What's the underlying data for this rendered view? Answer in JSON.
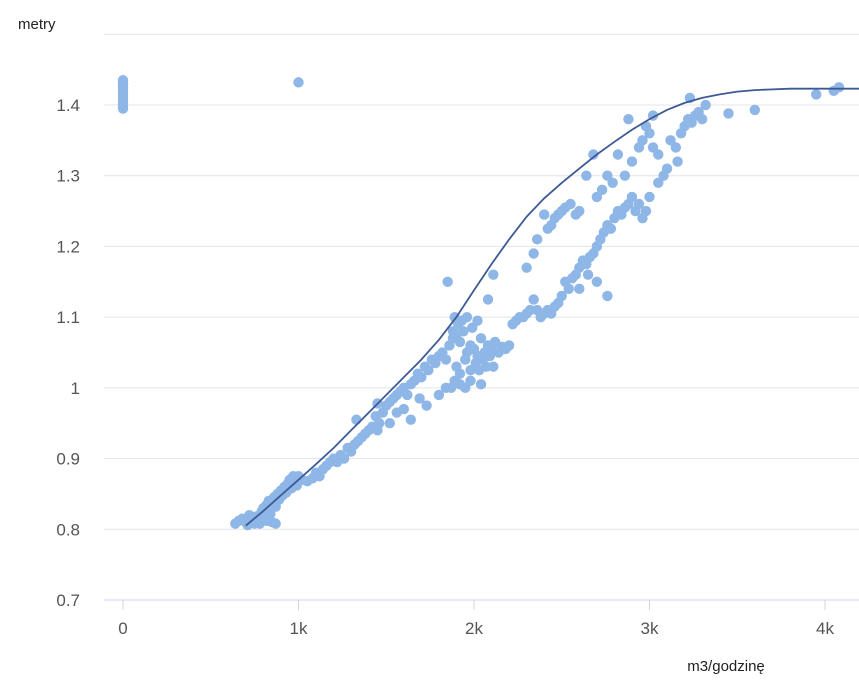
{
  "chart_data": {
    "type": "scatter",
    "ylabel": "metry",
    "xlabel": "m3/godzinę",
    "xlim": [
      -100,
      4200
    ],
    "ylim": [
      0.7,
      1.5
    ],
    "x_ticks": [
      {
        "v": 0,
        "label": "0"
      },
      {
        "v": 1000,
        "label": "1k"
      },
      {
        "v": 2000,
        "label": "2k"
      },
      {
        "v": 3000,
        "label": "3k"
      },
      {
        "v": 4000,
        "label": "4k"
      }
    ],
    "y_ticks": [
      {
        "v": 0.7,
        "label": "0.7"
      },
      {
        "v": 0.8,
        "label": "0.8"
      },
      {
        "v": 0.9,
        "label": "0.9"
      },
      {
        "v": 1.0,
        "label": "1"
      },
      {
        "v": 1.1,
        "label": "1.1"
      },
      {
        "v": 1.2,
        "label": "1.2"
      },
      {
        "v": 1.3,
        "label": "1.3"
      },
      {
        "v": 1.4,
        "label": "1.4"
      }
    ],
    "grid": true,
    "colors": {
      "points": "#8eb6e6",
      "fit_line": "#3e5a96",
      "grid": "#e2e4e8",
      "axis": "#ccd4e6"
    },
    "series": [
      {
        "marker": "circle",
        "points": [
          [
            0,
            1.395
          ],
          [
            0,
            1.4
          ],
          [
            0,
            1.405
          ],
          [
            0,
            1.41
          ],
          [
            0,
            1.415
          ],
          [
            0,
            1.42
          ],
          [
            0,
            1.425
          ],
          [
            0,
            1.43
          ],
          [
            0,
            1.435
          ],
          [
            1000,
            1.432
          ],
          [
            640,
            0.808
          ],
          [
            660,
            0.812
          ],
          [
            680,
            0.815
          ],
          [
            700,
            0.81
          ],
          [
            710,
            0.806
          ],
          [
            720,
            0.82
          ],
          [
            740,
            0.814
          ],
          [
            750,
            0.808
          ],
          [
            760,
            0.818
          ],
          [
            780,
            0.812
          ],
          [
            790,
            0.825
          ],
          [
            800,
            0.83
          ],
          [
            810,
            0.82
          ],
          [
            820,
            0.835
          ],
          [
            830,
            0.84
          ],
          [
            840,
            0.822
          ],
          [
            850,
            0.838
          ],
          [
            860,
            0.845
          ],
          [
            870,
            0.832
          ],
          [
            880,
            0.85
          ],
          [
            890,
            0.842
          ],
          [
            900,
            0.855
          ],
          [
            910,
            0.848
          ],
          [
            920,
            0.86
          ],
          [
            930,
            0.852
          ],
          [
            940,
            0.865
          ],
          [
            950,
            0.87
          ],
          [
            960,
            0.858
          ],
          [
            970,
            0.875
          ],
          [
            980,
            0.866
          ],
          [
            990,
            0.862
          ],
          [
            1000,
            0.875
          ],
          [
            780,
            0.808
          ],
          [
            820,
            0.812
          ],
          [
            850,
            0.81
          ],
          [
            870,
            0.808
          ],
          [
            1020,
            0.87
          ],
          [
            1050,
            0.868
          ],
          [
            1080,
            0.872
          ],
          [
            1100,
            0.88
          ],
          [
            1120,
            0.875
          ],
          [
            1140,
            0.885
          ],
          [
            1160,
            0.89
          ],
          [
            1180,
            0.895
          ],
          [
            1200,
            0.9
          ],
          [
            1220,
            0.895
          ],
          [
            1240,
            0.905
          ],
          [
            1260,
            0.9
          ],
          [
            1280,
            0.915
          ],
          [
            1300,
            0.91
          ],
          [
            1320,
            0.92
          ],
          [
            1330,
            0.955
          ],
          [
            1340,
            0.925
          ],
          [
            1360,
            0.93
          ],
          [
            1380,
            0.935
          ],
          [
            1400,
            0.94
          ],
          [
            1420,
            0.945
          ],
          [
            1440,
            0.96
          ],
          [
            1450,
            0.978
          ],
          [
            1460,
            0.95
          ],
          [
            1480,
            0.965
          ],
          [
            1500,
            0.975
          ],
          [
            1520,
            0.98
          ],
          [
            1540,
            0.985
          ],
          [
            1560,
            0.99
          ],
          [
            1580,
            0.995
          ],
          [
            1600,
            1.0
          ],
          [
            1620,
            0.99
          ],
          [
            1640,
            1.005
          ],
          [
            1660,
            1.01
          ],
          [
            1680,
            1.02
          ],
          [
            1700,
            1.015
          ],
          [
            1720,
            1.03
          ],
          [
            1740,
            1.025
          ],
          [
            1760,
            1.04
          ],
          [
            1780,
            1.035
          ],
          [
            1800,
            1.045
          ],
          [
            1820,
            1.05
          ],
          [
            1840,
            1.04
          ],
          [
            1860,
            1.06
          ],
          [
            1880,
            1.07
          ],
          [
            1900,
            1.075
          ],
          [
            1920,
            1.065
          ],
          [
            1940,
            1.08
          ],
          [
            1960,
            1.05
          ],
          [
            1980,
            1.06
          ],
          [
            2000,
            1.055
          ],
          [
            2020,
            1.045
          ],
          [
            2040,
            1.07
          ],
          [
            2060,
            1.05
          ],
          [
            2080,
            1.06
          ],
          [
            2100,
            1.055
          ],
          [
            2120,
            1.065
          ],
          [
            2140,
            1.05
          ],
          [
            2160,
            1.058
          ],
          [
            2180,
            1.055
          ],
          [
            1900,
            1.03
          ],
          [
            1920,
            1.02
          ],
          [
            1950,
            1.04
          ],
          [
            1980,
            1.025
          ],
          [
            2010,
            1.035
          ],
          [
            2030,
            1.025
          ],
          [
            2050,
            1.04
          ],
          [
            2070,
            1.03
          ],
          [
            2090,
            1.045
          ],
          [
            2110,
            1.03
          ],
          [
            1880,
            1.08
          ],
          [
            1890,
            1.1
          ],
          [
            1910,
            1.09
          ],
          [
            1930,
            1.095
          ],
          [
            1960,
            1.1
          ],
          [
            1990,
            1.085
          ],
          [
            2020,
            1.095
          ],
          [
            1870,
            1.0
          ],
          [
            1890,
            1.01
          ],
          [
            1920,
            1.005
          ],
          [
            1950,
            1.0
          ],
          [
            1980,
            1.01
          ],
          [
            2040,
            1.005
          ],
          [
            1850,
            1.15
          ],
          [
            2080,
            1.125
          ],
          [
            2110,
            1.16
          ],
          [
            2200,
            1.06
          ],
          [
            1450,
            0.94
          ],
          [
            1520,
            0.95
          ],
          [
            1560,
            0.965
          ],
          [
            1600,
            0.97
          ],
          [
            1640,
            0.955
          ],
          [
            1690,
            0.985
          ],
          [
            1730,
            0.975
          ],
          [
            1800,
            0.99
          ],
          [
            1840,
            1.0
          ],
          [
            2220,
            1.09
          ],
          [
            2240,
            1.095
          ],
          [
            2260,
            1.1
          ],
          [
            2280,
            1.1
          ],
          [
            2300,
            1.105
          ],
          [
            2320,
            1.11
          ],
          [
            2340,
            1.125
          ],
          [
            2360,
            1.11
          ],
          [
            2380,
            1.1
          ],
          [
            2400,
            1.105
          ],
          [
            2420,
            1.11
          ],
          [
            2440,
            1.105
          ],
          [
            2460,
            1.115
          ],
          [
            2480,
            1.12
          ],
          [
            2500,
            1.13
          ],
          [
            2520,
            1.15
          ],
          [
            2540,
            1.14
          ],
          [
            2560,
            1.155
          ],
          [
            2580,
            1.16
          ],
          [
            2600,
            1.17
          ],
          [
            2620,
            1.18
          ],
          [
            2640,
            1.175
          ],
          [
            2660,
            1.185
          ],
          [
            2680,
            1.19
          ],
          [
            2700,
            1.2
          ],
          [
            2720,
            1.21
          ],
          [
            2740,
            1.22
          ],
          [
            2760,
            1.23
          ],
          [
            2780,
            1.225
          ],
          [
            2800,
            1.24
          ],
          [
            2820,
            1.25
          ],
          [
            2840,
            1.245
          ],
          [
            2860,
            1.255
          ],
          [
            2880,
            1.26
          ],
          [
            2900,
            1.27
          ],
          [
            2920,
            1.25
          ],
          [
            2940,
            1.26
          ],
          [
            2960,
            1.24
          ],
          [
            2980,
            1.25
          ],
          [
            3000,
            1.27
          ],
          [
            2300,
            1.17
          ],
          [
            2340,
            1.19
          ],
          [
            2360,
            1.21
          ],
          [
            2400,
            1.245
          ],
          [
            2420,
            1.225
          ],
          [
            2440,
            1.23
          ],
          [
            2460,
            1.24
          ],
          [
            2480,
            1.245
          ],
          [
            2500,
            1.25
          ],
          [
            2520,
            1.255
          ],
          [
            2550,
            1.26
          ],
          [
            2580,
            1.245
          ],
          [
            2600,
            1.25
          ],
          [
            2640,
            1.3
          ],
          [
            2680,
            1.33
          ],
          [
            2700,
            1.27
          ],
          [
            2730,
            1.28
          ],
          [
            2760,
            1.3
          ],
          [
            2790,
            1.29
          ],
          [
            2820,
            1.33
          ],
          [
            2860,
            1.3
          ],
          [
            2900,
            1.32
          ],
          [
            2940,
            1.34
          ],
          [
            2960,
            1.35
          ],
          [
            3000,
            1.36
          ],
          [
            3020,
            1.34
          ],
          [
            3050,
            1.33
          ],
          [
            3080,
            1.3
          ],
          [
            3100,
            1.31
          ],
          [
            3120,
            1.35
          ],
          [
            3150,
            1.34
          ],
          [
            3180,
            1.36
          ],
          [
            3200,
            1.37
          ],
          [
            3220,
            1.38
          ],
          [
            3240,
            1.375
          ],
          [
            3260,
            1.385
          ],
          [
            3280,
            1.39
          ],
          [
            3300,
            1.38
          ],
          [
            3320,
            1.4
          ],
          [
            3230,
            1.41
          ],
          [
            3160,
            1.32
          ],
          [
            3050,
            1.29
          ],
          [
            2880,
            1.38
          ],
          [
            2980,
            1.37
          ],
          [
            3020,
            1.385
          ],
          [
            3450,
            1.388
          ],
          [
            3600,
            1.393
          ],
          [
            2700,
            1.15
          ],
          [
            2760,
            1.13
          ],
          [
            2650,
            1.16
          ],
          [
            2600,
            1.14
          ],
          [
            3950,
            1.415
          ],
          [
            4050,
            1.42
          ],
          [
            4080,
            1.425
          ]
        ]
      }
    ],
    "fit_line": {
      "points": [
        [
          700,
          0.805
        ],
        [
          800,
          0.826
        ],
        [
          900,
          0.848
        ],
        [
          1000,
          0.87
        ],
        [
          1100,
          0.892
        ],
        [
          1200,
          0.915
        ],
        [
          1300,
          0.94
        ],
        [
          1400,
          0.965
        ],
        [
          1500,
          0.99
        ],
        [
          1600,
          1.015
        ],
        [
          1700,
          1.04
        ],
        [
          1800,
          1.068
        ],
        [
          1900,
          1.1
        ],
        [
          2000,
          1.138
        ],
        [
          2100,
          1.175
        ],
        [
          2200,
          1.21
        ],
        [
          2300,
          1.242
        ],
        [
          2400,
          1.268
        ],
        [
          2500,
          1.29
        ],
        [
          2600,
          1.31
        ],
        [
          2700,
          1.33
        ],
        [
          2800,
          1.348
        ],
        [
          2900,
          1.365
        ],
        [
          3000,
          1.38
        ],
        [
          3100,
          1.393
        ],
        [
          3200,
          1.403
        ],
        [
          3300,
          1.41
        ],
        [
          3400,
          1.415
        ],
        [
          3500,
          1.419
        ],
        [
          3600,
          1.421
        ],
        [
          3700,
          1.422
        ],
        [
          3800,
          1.423
        ],
        [
          3900,
          1.423
        ],
        [
          4000,
          1.423
        ],
        [
          4200,
          1.423
        ]
      ]
    }
  }
}
